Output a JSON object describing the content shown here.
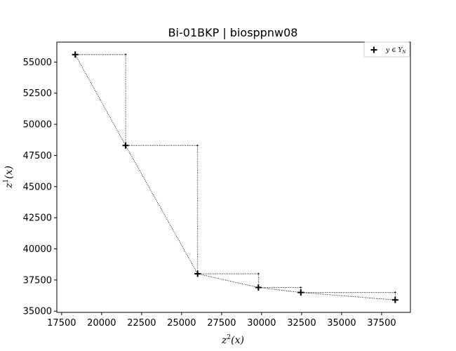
{
  "chart_data": {
    "type": "scatter",
    "title": "Bi-01BKP | biosppnw08",
    "xlabel_base": "z",
    "xlabel_sup": "2",
    "xlabel_arg": "(x)",
    "ylabel_base": "z",
    "ylabel_sup": "1",
    "ylabel_arg": "(x)",
    "xlim": [
      17200,
      39300
    ],
    "ylim": [
      34900,
      56600
    ],
    "xticks": [
      17500,
      20000,
      22500,
      25000,
      27500,
      30000,
      32500,
      35000,
      37500
    ],
    "yticks": [
      35000,
      37500,
      40000,
      42500,
      45000,
      47500,
      50000,
      52500,
      55000
    ],
    "series": [
      {
        "name": "y ∈ Y_N",
        "x": [
          18350,
          21500,
          26000,
          29800,
          32450,
          38350
        ],
        "y": [
          55600,
          48300,
          38000,
          36900,
          36500,
          35900
        ]
      }
    ],
    "legend": {
      "label": "y ∈ Y",
      "label_sub": "N",
      "placement": "top-right"
    },
    "grid": false
  }
}
